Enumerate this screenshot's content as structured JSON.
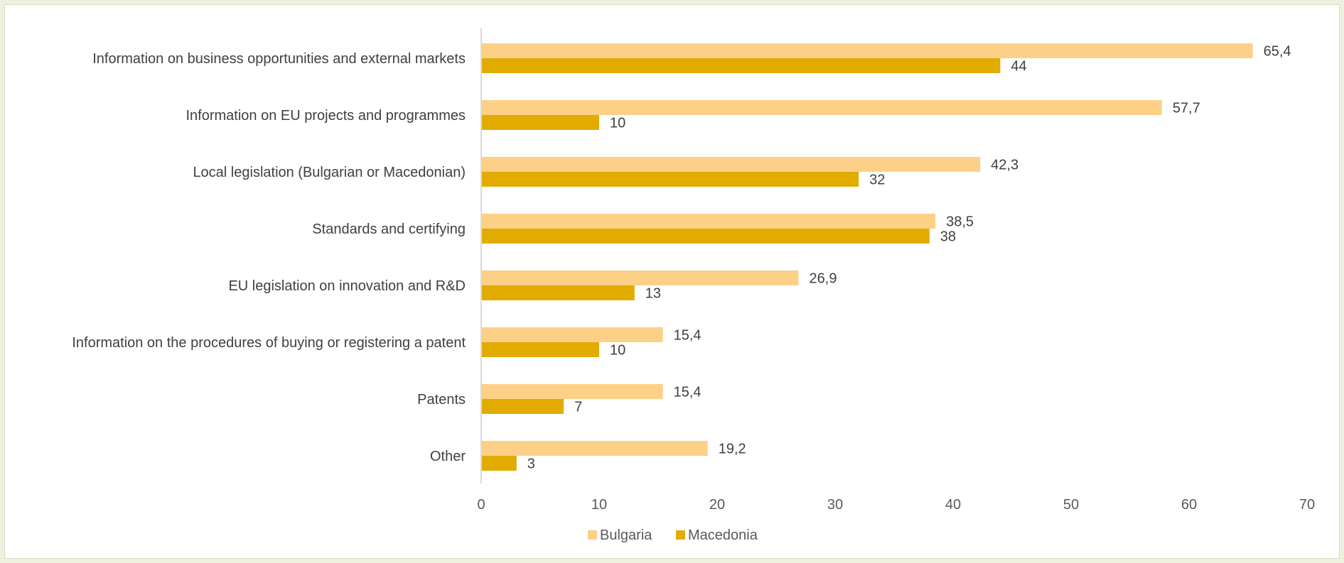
{
  "chart_data": {
    "type": "bar",
    "orientation": "horizontal",
    "categories": [
      "Information on business opportunities and external markets",
      "Information on EU projects and programmes",
      "Local legislation (Bulgarian or Macedonian)",
      "Standards and certifying",
      "EU legislation on innovation and R&D",
      "Information on the procedures of buying or registering a patent",
      "Patents",
      "Other"
    ],
    "series": [
      {
        "name": "Bulgaria",
        "color": "#fdd088",
        "values": [
          65.4,
          57.7,
          42.3,
          38.5,
          26.9,
          15.4,
          15.4,
          19.2
        ],
        "labels": [
          "65,4",
          "57,7",
          "42,3",
          "38,5",
          "26,9",
          "15,4",
          "15,4",
          "19,2"
        ]
      },
      {
        "name": "Macedonia",
        "color": "#e2ab00",
        "values": [
          44,
          10,
          32,
          38,
          13,
          10,
          7,
          3
        ],
        "labels": [
          "44",
          "10",
          "32",
          "38",
          "13",
          "10",
          "7",
          "3"
        ]
      }
    ],
    "xlim": [
      0,
      70
    ],
    "xticks": [
      0,
      10,
      20,
      30,
      40,
      50,
      60,
      70
    ],
    "xtick_labels": [
      "0",
      "10",
      "20",
      "30",
      "40",
      "50",
      "60",
      "70"
    ],
    "grid": false,
    "legend_position": "bottom",
    "title": "",
    "xlabel": "",
    "ylabel": ""
  }
}
